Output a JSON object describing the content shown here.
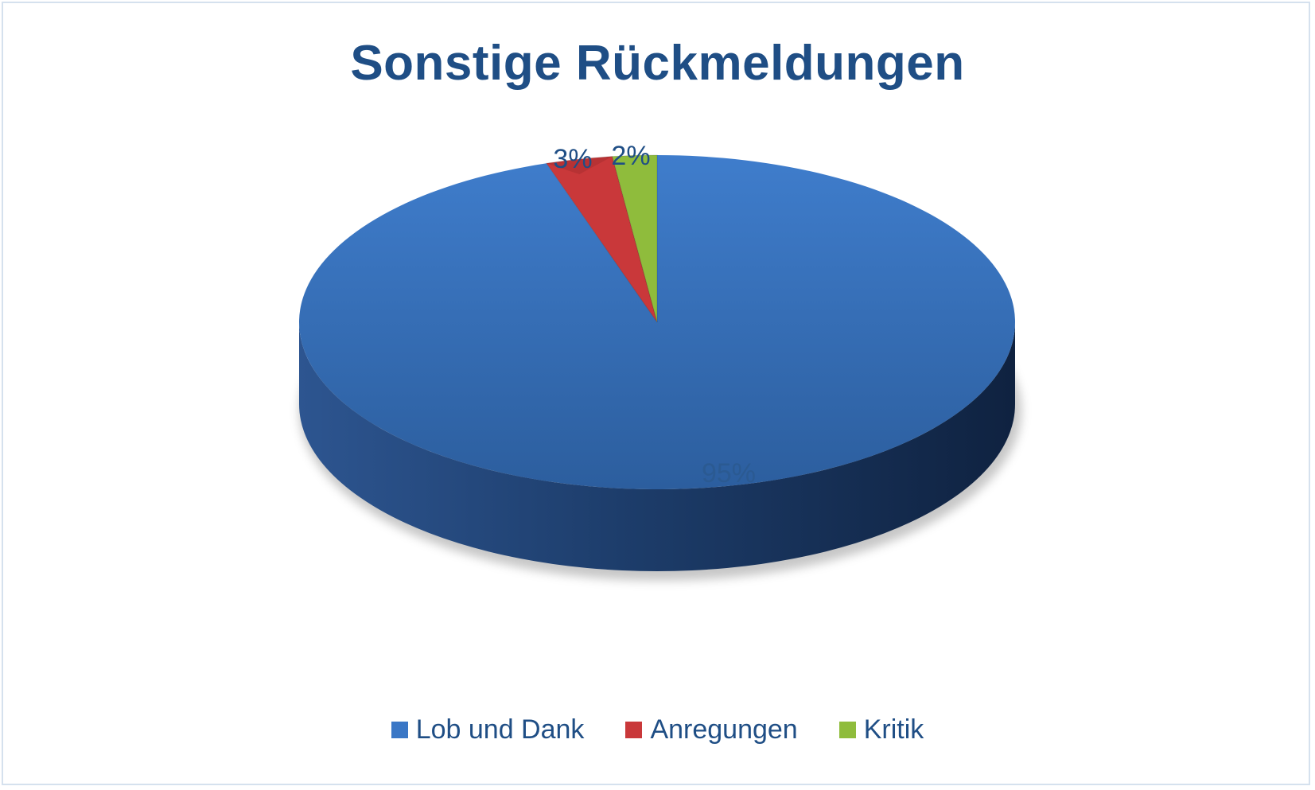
{
  "chart_data": {
    "type": "pie",
    "title": "Sonstige Rückmeldungen",
    "categories": [
      "Lob und Dank",
      "Anregungen",
      "Kritik"
    ],
    "values": [
      95,
      3,
      2
    ],
    "data_labels": [
      "95%",
      "3%",
      "2%"
    ],
    "colors": [
      "#3a77c6",
      "#c9383a",
      "#8fbc3c"
    ],
    "legend_position": "bottom",
    "style": "3d"
  }
}
